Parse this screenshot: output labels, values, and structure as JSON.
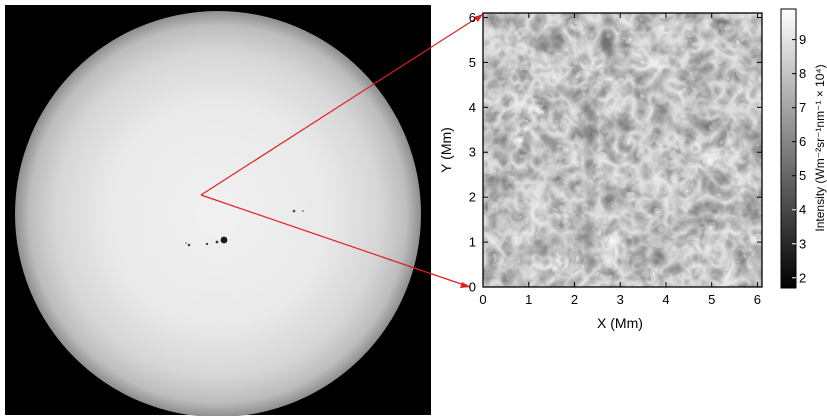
{
  "panel_right": {
    "x_axis": {
      "label": "X (Mm)",
      "ticks": [
        "0",
        "1",
        "2",
        "3",
        "4",
        "5",
        "6"
      ],
      "range": [
        0,
        6.1
      ]
    },
    "y_axis": {
      "label": "Y (Mm)",
      "ticks": [
        "0",
        "1",
        "2",
        "3",
        "4",
        "5",
        "6"
      ],
      "range": [
        0,
        6.1
      ]
    },
    "colorbar": {
      "label": "Intensity (Wm⁻²sr⁻¹nm⁻¹ × 10⁴)",
      "ticks": [
        "2",
        "3",
        "4",
        "5",
        "6",
        "7",
        "8",
        "9"
      ],
      "range": [
        1.7,
        9.9
      ]
    }
  },
  "colors": {
    "zoom_lines": "#e02020",
    "background_left": "#000000"
  }
}
